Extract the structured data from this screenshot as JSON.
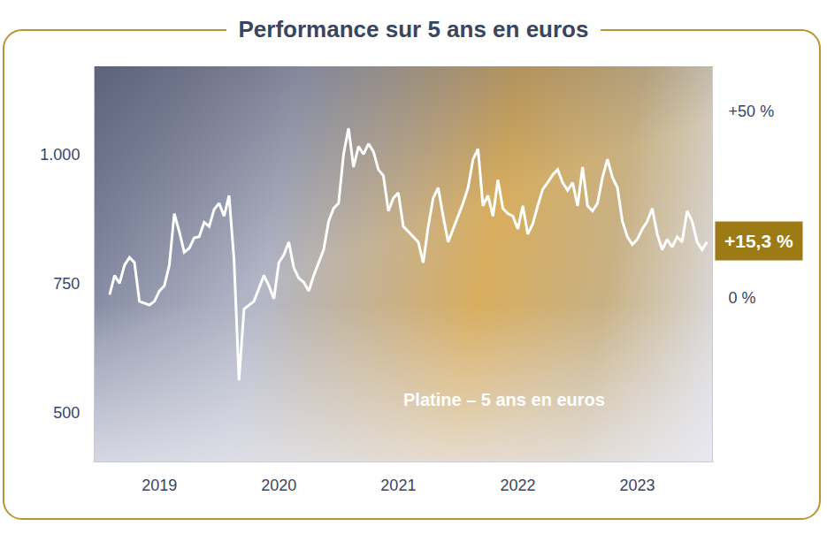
{
  "chart_data": {
    "type": "line",
    "title": "Performance sur 5 ans en euros",
    "categories": [
      null,
      null,
      null,
      null,
      null,
      null,
      null,
      null,
      null,
      null,
      "2019",
      null,
      null,
      null,
      null,
      null,
      null,
      null,
      null,
      null,
      null,
      null,
      null,
      null,
      null,
      null,
      null,
      null,
      null,
      null,
      null,
      null,
      null,
      null,
      "2020",
      null,
      null,
      null,
      null,
      null,
      null,
      null,
      null,
      null,
      null,
      null,
      null,
      null,
      null,
      null,
      null,
      null,
      null,
      null,
      null,
      null,
      null,
      null,
      "2021",
      null,
      null,
      null,
      null,
      null,
      null,
      null,
      null,
      null,
      null,
      null,
      null,
      null,
      null,
      null,
      null,
      null,
      null,
      null,
      null,
      null,
      null,
      null,
      "2022",
      null,
      null,
      null,
      null,
      null,
      null,
      null,
      null,
      null,
      null,
      null,
      null,
      null,
      null,
      null,
      null,
      null,
      null,
      null,
      null,
      null,
      null,
      null,
      "2023",
      null,
      null,
      null,
      null,
      null,
      null,
      null,
      null,
      null,
      null,
      null,
      null,
      null,
      null
    ],
    "values": [
      728,
      765,
      750,
      785,
      800,
      790,
      715,
      712,
      708,
      715,
      735,
      745,
      785,
      885,
      850,
      810,
      818,
      838,
      840,
      868,
      860,
      893,
      905,
      880,
      920,
      795,
      562,
      700,
      708,
      715,
      740,
      765,
      745,
      720,
      790,
      805,
      830,
      780,
      760,
      752,
      735,
      765,
      790,
      815,
      870,
      895,
      905,
      1000,
      1050,
      975,
      1015,
      1000,
      1020,
      1005,
      970,
      958,
      890,
      915,
      925,
      860,
      850,
      840,
      830,
      790,
      860,
      915,
      935,
      880,
      830,
      855,
      880,
      905,
      935,
      990,
      1010,
      900,
      920,
      880,
      950,
      895,
      885,
      880,
      855,
      900,
      845,
      865,
      900,
      932,
      945,
      960,
      970,
      945,
      930,
      945,
      900,
      975,
      900,
      890,
      905,
      955,
      990,
      955,
      935,
      870,
      840,
      825,
      835,
      855,
      870,
      895,
      845,
      815,
      835,
      820,
      840,
      830,
      890,
      870,
      830,
      815,
      830
    ],
    "color": "#ffffff",
    "ylim": [
      405,
      1170
    ],
    "yticks": [
      500,
      750,
      {
        "value": 1000,
        "label": "1.000"
      }
    ],
    "y2lim": [
      -43.9,
      62.0
    ],
    "y2ticks": [
      {
        "value": 0,
        "label": "0 %"
      },
      {
        "value": 50,
        "label": "+50 %"
      }
    ],
    "grid": false,
    "annotations": [
      {
        "text": "Platine – 5 ans en euros"
      },
      {
        "text": "+15,3 %",
        "value": 15.3,
        "axis": "y2"
      }
    ]
  }
}
